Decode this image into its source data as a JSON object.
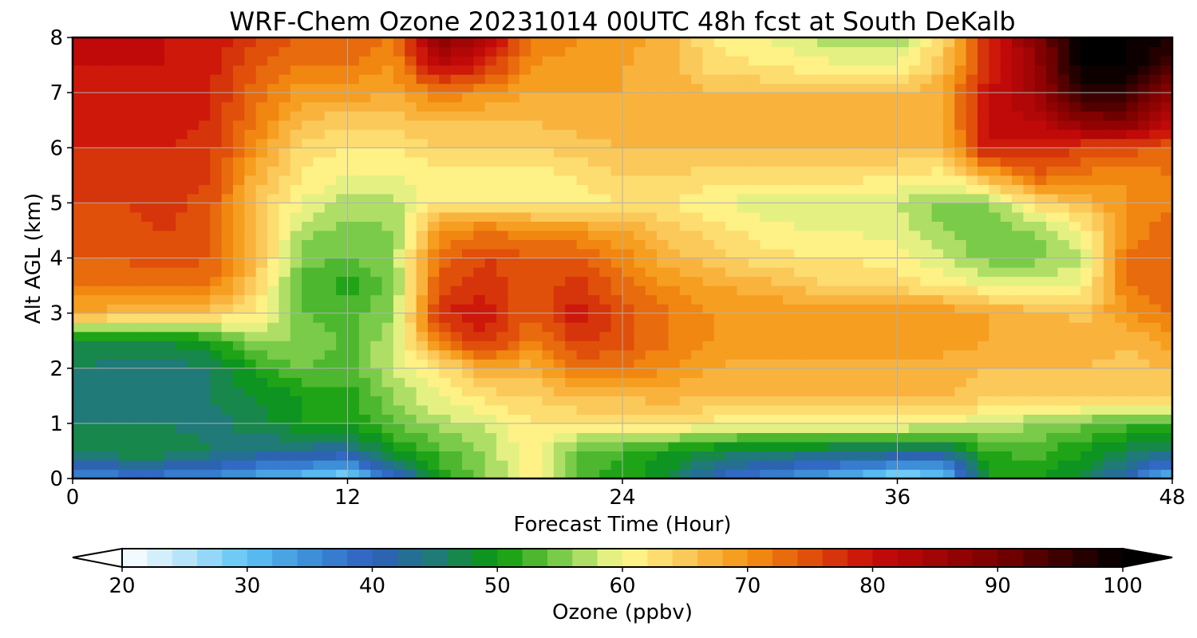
{
  "chart_data": {
    "type": "heatmap",
    "title": "WRF-Chem Ozone  20231014 00UTC 48h fcst at South DeKalb",
    "xlabel": "Forecast Time (Hour)",
    "ylabel": "Alt AGL (km)",
    "xlim": [
      0,
      48
    ],
    "ylim": [
      0,
      8
    ],
    "xticks": [
      "0",
      "12",
      "24",
      "36",
      "48"
    ],
    "yticks": [
      "0",
      "1",
      "2",
      "3",
      "4",
      "5",
      "6",
      "7",
      "8"
    ],
    "grid": true,
    "colorbar": {
      "label": "Ozone  (ppbv)",
      "min": 20,
      "max": 100,
      "step": 2,
      "extend": "both",
      "ticks": [
        "20",
        "30",
        "40",
        "50",
        "60",
        "70",
        "80",
        "90",
        "100"
      ],
      "color_stops": [
        [
          20,
          "#ffffff"
        ],
        [
          25,
          "#b8e4fa"
        ],
        [
          30,
          "#5ec3f5"
        ],
        [
          35,
          "#3d8fd8"
        ],
        [
          40,
          "#2f5fbf"
        ],
        [
          45,
          "#1f7a78"
        ],
        [
          50,
          "#0a9a0a"
        ],
        [
          55,
          "#7acb4a"
        ],
        [
          60,
          "#fffb90"
        ],
        [
          65,
          "#fbc85a"
        ],
        [
          70,
          "#f59312"
        ],
        [
          75,
          "#e0500a"
        ],
        [
          80,
          "#c80a0a"
        ],
        [
          90,
          "#7a0000"
        ],
        [
          100,
          "#000000"
        ]
      ]
    },
    "x": [
      0,
      2,
      4,
      6,
      8,
      10,
      12,
      14,
      16,
      18,
      20,
      22,
      24,
      26,
      28,
      30,
      32,
      34,
      36,
      38,
      40,
      42,
      44,
      46,
      48
    ],
    "y": [
      0,
      0.5,
      1,
      1.5,
      2,
      2.5,
      3,
      3.5,
      4,
      4.5,
      5,
      5.5,
      6,
      6.5,
      7,
      7.5,
      8
    ],
    "z": [
      [
        36,
        36,
        36,
        35,
        32,
        30,
        27,
        38,
        50,
        55,
        62,
        53,
        51,
        48,
        40,
        36,
        33,
        30,
        26,
        28,
        50,
        50,
        48,
        40,
        30
      ],
      [
        46,
        48,
        48,
        46,
        44,
        43,
        42,
        50,
        53,
        56,
        62,
        54,
        52,
        50,
        48,
        46,
        46,
        45,
        45,
        44,
        52,
        53,
        50,
        47,
        45
      ],
      [
        46,
        46,
        46,
        45,
        47,
        50,
        50,
        54,
        57,
        58,
        62,
        62,
        63,
        63,
        61,
        61,
        61,
        61,
        61,
        60,
        58,
        56,
        55,
        53,
        52
      ],
      [
        45,
        45,
        45,
        46,
        48,
        50,
        51,
        56,
        60,
        63,
        64,
        66,
        66,
        67,
        66,
        66,
        66,
        66,
        66,
        66,
        65,
        65,
        65,
        64,
        64
      ],
      [
        46,
        45,
        45,
        46,
        51,
        54,
        53,
        58,
        62,
        68,
        67,
        72,
        72,
        70,
        68,
        67,
        67,
        67,
        67,
        67,
        66,
        66,
        66,
        65,
        66
      ],
      [
        48,
        48,
        48,
        50,
        56,
        56,
        53,
        58,
        72,
        78,
        71,
        77,
        75,
        72,
        70,
        69,
        69,
        69,
        69,
        69,
        68,
        68,
        68,
        66,
        69
      ],
      [
        68,
        67,
        66,
        65,
        62,
        54,
        53,
        56,
        78,
        79,
        74,
        79,
        75,
        72,
        70,
        70,
        70,
        70,
        70,
        70,
        68,
        67,
        65,
        70,
        72
      ],
      [
        72,
        72,
        73,
        72,
        64,
        53,
        51,
        55,
        75,
        78,
        74,
        77,
        73,
        70,
        68,
        67,
        65,
        63,
        63,
        62,
        60,
        60,
        60,
        72,
        74
      ],
      [
        74,
        74,
        75,
        74,
        66,
        55,
        54,
        56,
        73,
        76,
        74,
        74,
        71,
        67,
        65,
        63,
        62,
        62,
        61,
        58,
        55,
        55,
        57,
        72,
        74
      ],
      [
        75,
        75,
        76,
        75,
        66,
        57,
        55,
        56,
        70,
        72,
        71,
        70,
        68,
        65,
        63,
        61,
        60,
        60,
        59,
        56,
        54,
        56,
        60,
        71,
        73
      ],
      [
        76,
        76,
        77,
        75,
        66,
        60,
        57,
        57,
        62,
        62,
        61,
        61,
        62,
        62,
        60,
        59,
        59,
        59,
        58,
        55,
        56,
        63,
        66,
        70,
        72
      ],
      [
        77,
        77,
        78,
        76,
        67,
        62,
        60,
        60,
        61,
        61,
        61,
        62,
        64,
        64,
        63,
        63,
        63,
        63,
        62,
        61,
        67,
        74,
        72,
        70,
        72
      ],
      [
        78,
        78,
        78,
        77,
        70,
        63,
        62,
        62,
        64,
        64,
        64,
        65,
        66,
        66,
        66,
        66,
        66,
        66,
        66,
        66,
        80,
        78,
        76,
        75,
        74
      ],
      [
        78,
        79,
        79,
        78,
        72,
        66,
        65,
        65,
        66,
        66,
        66,
        67,
        67,
        67,
        67,
        67,
        67,
        67,
        67,
        68,
        80,
        82,
        88,
        90,
        82
      ],
      [
        79,
        79,
        79,
        78,
        73,
        69,
        69,
        68,
        72,
        70,
        68,
        68,
        68,
        67,
        66,
        66,
        66,
        66,
        66,
        68,
        80,
        85,
        96,
        96,
        86
      ],
      [
        80,
        80,
        80,
        79,
        74,
        72,
        72,
        70,
        82,
        78,
        70,
        69,
        68,
        67,
        63,
        62,
        61,
        60,
        60,
        65,
        78,
        86,
        100,
        100,
        94
      ],
      [
        80,
        80,
        80,
        80,
        76,
        74,
        74,
        72,
        88,
        84,
        72,
        70,
        69,
        67,
        62,
        60,
        58,
        56,
        56,
        64,
        78,
        88,
        100,
        100,
        98
      ]
    ]
  }
}
